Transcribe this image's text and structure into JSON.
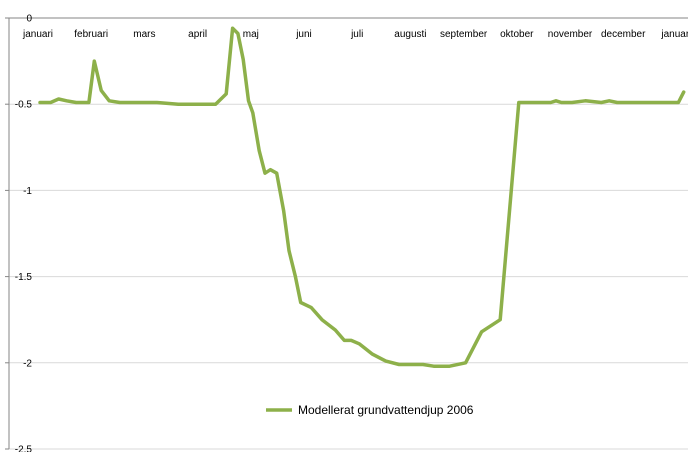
{
  "chart_data": {
    "type": "line",
    "x_categories": [
      "januari",
      "februari",
      "mars",
      "april",
      "maj",
      "juni",
      "juli",
      "augusti",
      "september",
      "oktober",
      "november",
      "december",
      "januari"
    ],
    "y_ticks": [
      "0",
      "-0.5",
      "-1",
      "-1.5",
      "-2",
      "-2.5"
    ],
    "ylim": [
      -2.5,
      0
    ],
    "grid": "horizontal",
    "legend_position": "bottom-center",
    "series": [
      {
        "name": "Modellerat grundvattendjup 2006",
        "color": "#8db04a",
        "x_unit": "months since 1 january",
        "x": [
          0.0,
          0.1,
          0.2,
          0.35,
          0.5,
          0.68,
          0.82,
          0.92,
          1.02,
          1.15,
          1.3,
          1.5,
          1.8,
          2.2,
          2.6,
          2.9,
          3.3,
          3.5,
          3.62,
          3.72,
          3.82,
          3.92,
          4.0,
          4.12,
          4.23,
          4.33,
          4.45,
          4.58,
          4.68,
          4.8,
          4.9,
          5.1,
          5.3,
          5.55,
          5.72,
          5.85,
          6.0,
          6.25,
          6.5,
          6.75,
          6.95,
          7.2,
          7.4,
          7.7,
          8.0,
          8.3,
          8.65,
          9.0,
          9.35,
          9.5,
          9.6,
          9.7,
          9.8,
          10.0,
          10.25,
          10.55,
          10.7,
          10.85,
          11.0,
          11.2,
          11.4,
          11.7,
          12.0,
          12.1
        ],
        "y": [
          -0.49,
          -0.49,
          -0.49,
          -0.47,
          -0.48,
          -0.49,
          -0.49,
          -0.49,
          -0.25,
          -0.42,
          -0.48,
          -0.49,
          -0.49,
          -0.49,
          -0.5,
          -0.5,
          -0.5,
          -0.44,
          -0.06,
          -0.09,
          -0.24,
          -0.48,
          -0.55,
          -0.77,
          -0.9,
          -0.88,
          -0.9,
          -1.12,
          -1.35,
          -1.5,
          -1.65,
          -1.68,
          -1.75,
          -1.81,
          -1.87,
          -1.87,
          -1.89,
          -1.95,
          -1.99,
          -2.01,
          -2.01,
          -2.01,
          -2.02,
          -2.02,
          -2.0,
          -1.82,
          -1.75,
          -0.49,
          -0.49,
          -0.49,
          -0.49,
          -0.48,
          -0.49,
          -0.49,
          -0.48,
          -0.49,
          -0.48,
          -0.49,
          -0.49,
          -0.49,
          -0.49,
          -0.49,
          -0.49,
          -0.43
        ]
      }
    ]
  }
}
